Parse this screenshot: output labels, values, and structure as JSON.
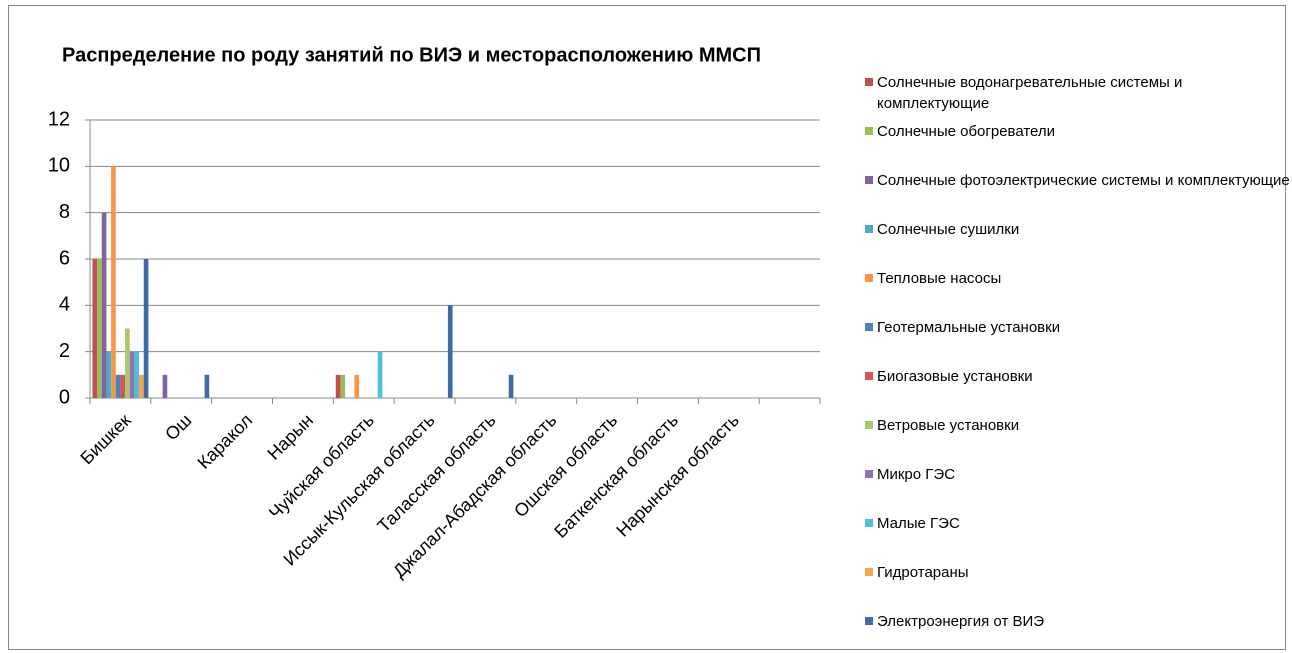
{
  "chart_data": {
    "type": "bar",
    "title": "Распределение по роду занятий по ВИЭ и месторасположению ММСП",
    "categories": [
      "Бишкек",
      "Ош",
      "Каракол",
      "Нарын",
      "Чуйская область",
      "Иссык-Кульская область",
      "Таласская область",
      "Джалал-Абадская область",
      "Ошская область",
      "Баткенская область",
      "Нарынская область",
      null
    ],
    "series": [
      {
        "name": "Солнечные водонагревательные системы и комплектующие",
        "color": "#c0504d",
        "values": [
          6,
          0,
          0,
          0,
          1,
          0,
          0,
          0,
          0,
          0,
          0,
          0
        ]
      },
      {
        "name": "Солнечные обогреватели",
        "color": "#9bbb59",
        "values": [
          6,
          0,
          0,
          0,
          1,
          0,
          0,
          0,
          0,
          0,
          0,
          0
        ]
      },
      {
        "name": "Солнечные фотоэлектрические системы и комплектующие",
        "color": "#8064a2",
        "values": [
          8,
          1,
          0,
          0,
          0,
          0,
          0,
          0,
          0,
          0,
          0,
          0
        ]
      },
      {
        "name": "Солнечные сушилки",
        "color": "#4bacc6",
        "values": [
          2,
          0,
          0,
          0,
          0,
          0,
          0,
          0,
          0,
          0,
          0,
          0
        ]
      },
      {
        "name": "Тепловые насосы",
        "color": "#f79646",
        "values": [
          10,
          0,
          0,
          0,
          1,
          0,
          0,
          0,
          0,
          0,
          0,
          0
        ]
      },
      {
        "name": "Геотермальные установки",
        "color": "#4f81bd",
        "values": [
          1,
          0,
          0,
          0,
          0,
          0,
          0,
          0,
          0,
          0,
          0,
          0
        ]
      },
      {
        "name": "Биогазовые установки",
        "color": "#d65454",
        "values": [
          1,
          0,
          0,
          0,
          0,
          0,
          0,
          0,
          0,
          0,
          0,
          0
        ]
      },
      {
        "name": "Ветровые установки",
        "color": "#a9c96a",
        "values": [
          3,
          0,
          0,
          0,
          0,
          0,
          0,
          0,
          0,
          0,
          0,
          0
        ]
      },
      {
        "name": "Микро ГЭС",
        "color": "#8f72b0",
        "values": [
          2,
          0,
          0,
          0,
          0,
          0,
          0,
          0,
          0,
          0,
          0,
          0
        ]
      },
      {
        "name": "Малые ГЭС",
        "color": "#4fc0d6",
        "values": [
          2,
          0,
          0,
          0,
          2,
          0,
          0,
          0,
          0,
          0,
          0,
          0
        ]
      },
      {
        "name": "Гидротараны",
        "color": "#f9a350",
        "values": [
          1,
          0,
          0,
          0,
          0,
          0,
          0,
          0,
          0,
          0,
          0,
          0
        ]
      },
      {
        "name": "Электроэнергия от ВИЭ",
        "color": "#3f6ba3",
        "values": [
          6,
          1,
          0,
          0,
          0,
          4,
          1,
          0,
          0,
          0,
          0,
          0
        ]
      }
    ],
    "ylim": [
      0,
      12
    ],
    "yticks": [
      0,
      2,
      4,
      6,
      8,
      10,
      12
    ],
    "grid": true,
    "legend": "right"
  }
}
